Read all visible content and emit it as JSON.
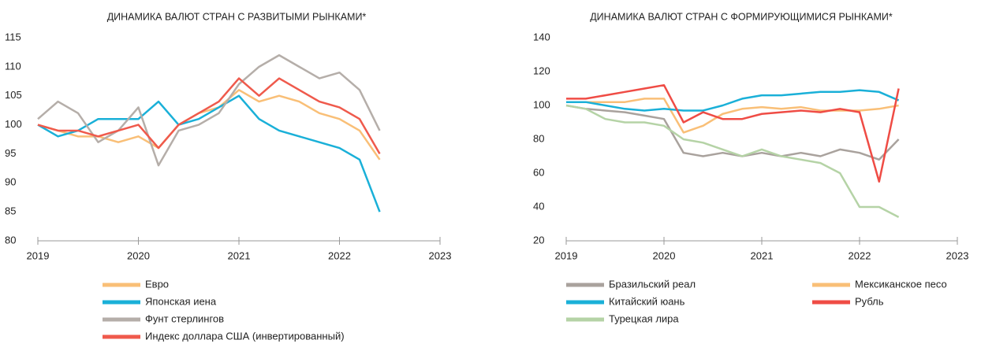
{
  "chart_data": [
    {
      "type": "line",
      "title": "ДИНАМИКА ВАЛЮТ СТРАН С РАЗВИТЫМИ РЫНКАМИ*",
      "x": [
        2019,
        2019.2,
        2019.4,
        2019.6,
        2019.8,
        2020,
        2020.2,
        2020.4,
        2020.6,
        2020.8,
        2021,
        2021.2,
        2021.4,
        2021.6,
        2021.8,
        2022,
        2022.2,
        2022.4
      ],
      "xlim": [
        2019,
        2023
      ],
      "xticks": [
        2019,
        2020,
        2021,
        2022,
        2023
      ],
      "ylim": [
        80,
        115
      ],
      "yticks": [
        80,
        85,
        90,
        95,
        100,
        105,
        110,
        115
      ],
      "grid": false,
      "series": [
        {
          "name": "Евро",
          "color": "#f9bf77",
          "values": [
            100,
            99,
            98,
            98,
            97,
            98,
            96,
            100,
            102,
            103,
            106,
            104,
            105,
            104,
            102,
            101,
            99,
            94
          ]
        },
        {
          "name": "Японская иена",
          "color": "#1ab0d8",
          "values": [
            100,
            98,
            99,
            101,
            101,
            101,
            104,
            100,
            101,
            103,
            105,
            101,
            99,
            98,
            97,
            96,
            94,
            85
          ]
        },
        {
          "name": "Фунт стерлингов",
          "color": "#b5aea9",
          "values": [
            101,
            104,
            102,
            97,
            99,
            103,
            93,
            99,
            100,
            102,
            107,
            110,
            112,
            110,
            108,
            109,
            106,
            99
          ]
        },
        {
          "name": "Индекс доллара США (инвертированный)",
          "color": "#ef5a4c",
          "values": [
            100,
            99,
            99,
            98,
            99,
            100,
            96,
            100,
            102,
            104,
            108,
            105,
            108,
            106,
            104,
            103,
            101,
            95
          ]
        }
      ]
    },
    {
      "type": "line",
      "title": "ДИНАМИКА ВАЛЮТ СТРАН С ФОРМИРУЮЩИМИСЯ РЫНКАМИ*",
      "x": [
        2019,
        2019.2,
        2019.4,
        2019.6,
        2019.8,
        2020,
        2020.2,
        2020.4,
        2020.6,
        2020.8,
        2021,
        2021.2,
        2021.4,
        2021.6,
        2021.8,
        2022,
        2022.2,
        2022.4
      ],
      "xlim": [
        2019,
        2023
      ],
      "xticks": [
        2019,
        2020,
        2021,
        2022,
        2023
      ],
      "ylim": [
        20,
        140
      ],
      "yticks": [
        20,
        40,
        60,
        80,
        100,
        120,
        140
      ],
      "grid": false,
      "series": [
        {
          "name": "Бразильский реал",
          "color": "#a9a29d",
          "values": [
            100,
            98,
            97,
            96,
            94,
            92,
            72,
            70,
            72,
            70,
            72,
            70,
            72,
            70,
            74,
            72,
            68,
            80
          ]
        },
        {
          "name": "Мексиканское песо",
          "color": "#f9bf77",
          "values": [
            102,
            102,
            102,
            102,
            104,
            104,
            84,
            88,
            95,
            98,
            99,
            98,
            99,
            97,
            97,
            97,
            98,
            100
          ]
        },
        {
          "name": "Китайский юань",
          "color": "#1ab0d8",
          "values": [
            102,
            102,
            100,
            98,
            97,
            98,
            97,
            97,
            100,
            104,
            106,
            106,
            107,
            108,
            108,
            109,
            108,
            103
          ]
        },
        {
          "name": "Рубль",
          "color": "#ef4c45",
          "values": [
            104,
            104,
            106,
            108,
            110,
            112,
            90,
            96,
            92,
            92,
            95,
            96,
            97,
            96,
            98,
            96,
            55,
            110
          ]
        },
        {
          "name": "Турецкая лира",
          "color": "#b5d3a6",
          "values": [
            100,
            98,
            92,
            90,
            90,
            88,
            80,
            78,
            74,
            70,
            74,
            70,
            68,
            66,
            60,
            40,
            40,
            34
          ]
        }
      ]
    }
  ]
}
